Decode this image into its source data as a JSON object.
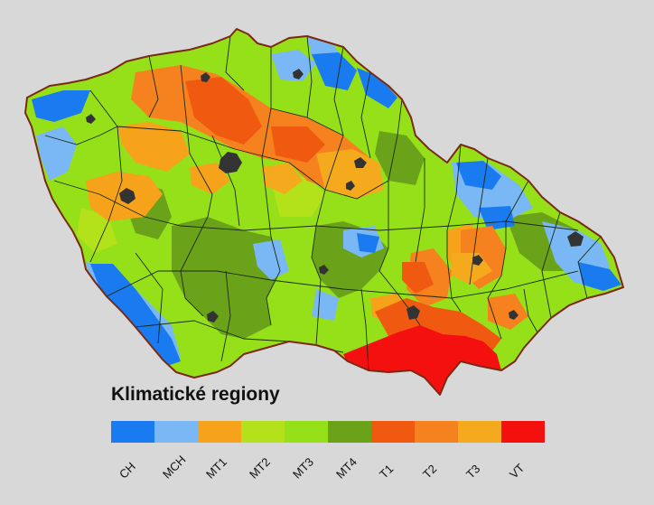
{
  "legend": {
    "title": "Klimatické regiony",
    "classes": [
      {
        "code": "CH",
        "color": "#1a7af0"
      },
      {
        "code": "MCH",
        "color": "#7ab8f5"
      },
      {
        "code": "MT1",
        "color": "#f7a21b"
      },
      {
        "code": "MT2",
        "color": "#b4e21a"
      },
      {
        "code": "MT3",
        "color": "#96e01a"
      },
      {
        "code": "MT4",
        "color": "#6aa31a"
      },
      {
        "code": "T1",
        "color": "#f05a10"
      },
      {
        "code": "T2",
        "color": "#f5821e"
      },
      {
        "code": "T3",
        "color": "#f5aa1e"
      },
      {
        "code": "VT",
        "color": "#f51010"
      }
    ]
  },
  "map": {
    "border_color": "#7a2a14",
    "district_line_color": "#1b2a10",
    "city_color": "#333333"
  }
}
